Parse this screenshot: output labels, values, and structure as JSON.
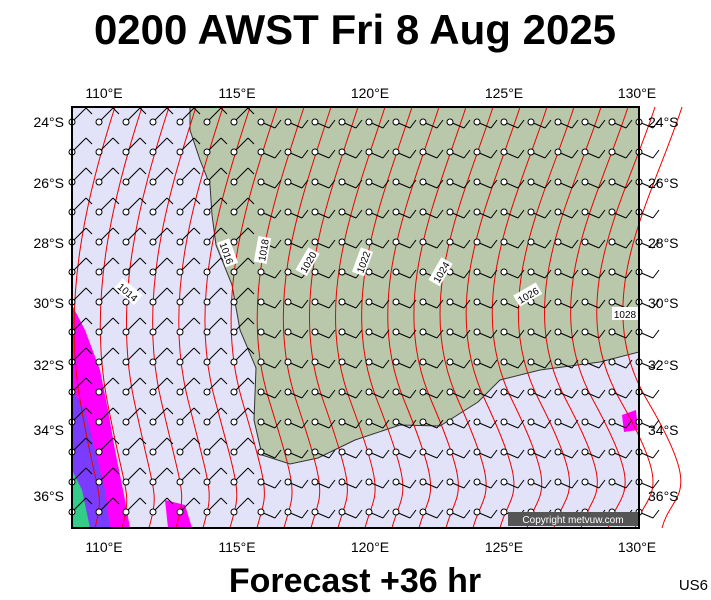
{
  "header": {
    "title": "0200 AWST Fri 8 Aug 2025"
  },
  "map": {
    "lon_labels": [
      "110°E",
      "115°E",
      "120°E",
      "125°E",
      "130°E"
    ],
    "lat_labels": [
      "24°S",
      "26°S",
      "28°S",
      "30°S",
      "32°S",
      "34°S",
      "36°S"
    ],
    "isobar_labels": [
      "1014",
      "1016",
      "1018",
      "1020",
      "1022",
      "1024",
      "1026",
      "1028"
    ],
    "copyright": "Copyright metvuw.com"
  },
  "footer": {
    "forecast": "Forecast +36 hr",
    "code": "US6"
  }
}
